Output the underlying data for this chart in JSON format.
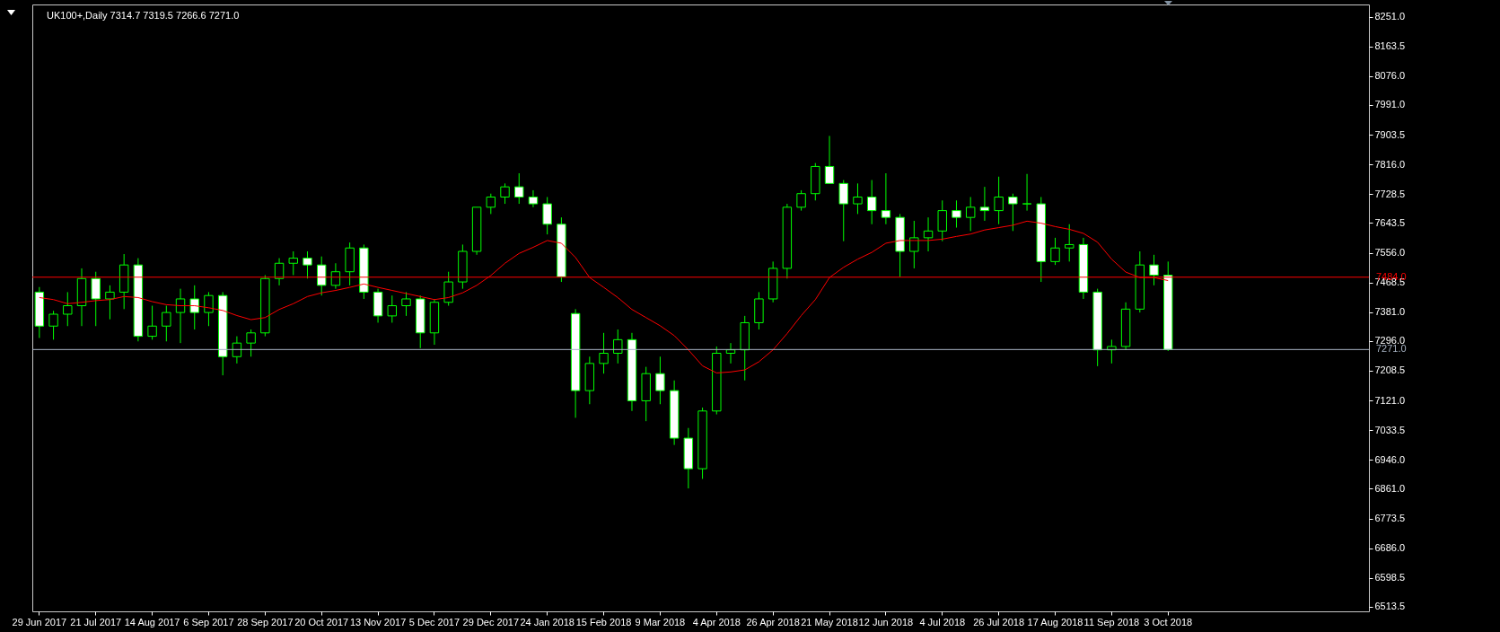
{
  "chart_data": {
    "type": "candlestick",
    "title": "UK100+,Daily 7314.7 7319.5 7266.6 7271.0",
    "categories": [
      "29 Jun 2017",
      null,
      null,
      null,
      "21 Jul 2017",
      null,
      null,
      null,
      "14 Aug 2017",
      null,
      null,
      null,
      "6 Sep 2017",
      null,
      null,
      null,
      "28 Sep 2017",
      null,
      null,
      null,
      "20 Oct 2017",
      null,
      null,
      null,
      "13 Nov 2017",
      null,
      null,
      null,
      "5 Dec 2017",
      null,
      null,
      null,
      "29 Dec 2017",
      null,
      null,
      null,
      "24 Jan 2018",
      null,
      null,
      null,
      "15 Feb 2018",
      null,
      null,
      null,
      "9 Mar 2018",
      null,
      null,
      null,
      "4 Apr 2018",
      null,
      null,
      null,
      "26 Apr 2018",
      null,
      null,
      null,
      "21 May 2018",
      null,
      null,
      null,
      "12 Jun 2018",
      null,
      null,
      null,
      "4 Jul 2018",
      null,
      null,
      null,
      "26 Jul 2018",
      null,
      null,
      null,
      "17 Aug 2018",
      null,
      null,
      null,
      "11 Sep 2018",
      null,
      null,
      null,
      "3 Oct 2018"
    ],
    "series": [
      {
        "color": "#00ff00",
        "ohlc": [
          [
            7440,
            7455,
            7305,
            7340
          ],
          [
            7340,
            7385,
            7300,
            7375
          ],
          [
            7375,
            7440,
            7340,
            7400
          ],
          [
            7400,
            7510,
            7340,
            7480
          ],
          [
            7480,
            7500,
            7340,
            7420
          ],
          [
            7420,
            7460,
            7360,
            7440
          ],
          [
            7440,
            7552,
            7390,
            7520
          ],
          [
            7520,
            7540,
            7295,
            7310
          ],
          [
            7310,
            7400,
            7300,
            7340
          ],
          [
            7340,
            7400,
            7295,
            7380
          ],
          [
            7380,
            7450,
            7290,
            7420
          ],
          [
            7420,
            7460,
            7330,
            7380
          ],
          [
            7380,
            7440,
            7340,
            7430
          ],
          [
            7430,
            7440,
            7195,
            7250
          ],
          [
            7250,
            7310,
            7230,
            7290
          ],
          [
            7290,
            7330,
            7250,
            7320
          ],
          [
            7320,
            7490,
            7310,
            7480
          ],
          [
            7480,
            7540,
            7460,
            7525
          ],
          [
            7525,
            7560,
            7490,
            7540
          ],
          [
            7540,
            7560,
            7480,
            7520
          ],
          [
            7520,
            7545,
            7430,
            7460
          ],
          [
            7460,
            7525,
            7450,
            7500
          ],
          [
            7500,
            7586,
            7460,
            7570
          ],
          [
            7570,
            7580,
            7420,
            7440
          ],
          [
            7440,
            7450,
            7350,
            7370
          ],
          [
            7370,
            7430,
            7350,
            7400
          ],
          [
            7400,
            7440,
            7370,
            7420
          ],
          [
            7420,
            7430,
            7275,
            7320
          ],
          [
            7320,
            7420,
            7285,
            7410
          ],
          [
            7410,
            7500,
            7400,
            7470
          ],
          [
            7470,
            7580,
            7450,
            7560
          ],
          [
            7560,
            7690,
            7550,
            7690
          ],
          [
            7690,
            7730,
            7670,
            7720
          ],
          [
            7720,
            7760,
            7700,
            7750
          ],
          [
            7750,
            7790,
            7700,
            7720
          ],
          [
            7720,
            7740,
            7690,
            7700
          ],
          [
            7700,
            7720,
            7610,
            7640
          ],
          [
            7640,
            7660,
            7470,
            7485
          ],
          [
            7377,
            7390,
            7070,
            7150
          ],
          [
            7150,
            7250,
            7110,
            7230
          ],
          [
            7230,
            7320,
            7200,
            7260
          ],
          [
            7260,
            7330,
            7230,
            7300
          ],
          [
            7300,
            7320,
            7090,
            7120
          ],
          [
            7120,
            7220,
            7060,
            7200
          ],
          [
            7200,
            7250,
            7110,
            7150
          ],
          [
            7150,
            7180,
            6990,
            7010
          ],
          [
            7010,
            7040,
            6862,
            6920
          ],
          [
            6920,
            7100,
            6890,
            7090
          ],
          [
            7090,
            7280,
            7080,
            7260
          ],
          [
            7260,
            7290,
            7230,
            7270
          ],
          [
            7270,
            7370,
            7180,
            7350
          ],
          [
            7350,
            7440,
            7330,
            7420
          ],
          [
            7420,
            7530,
            7410,
            7510
          ],
          [
            7510,
            7700,
            7480,
            7690
          ],
          [
            7690,
            7740,
            7680,
            7730
          ],
          [
            7730,
            7820,
            7710,
            7810
          ],
          [
            7810,
            7900,
            7760,
            7760
          ],
          [
            7760,
            7770,
            7590,
            7700
          ],
          [
            7700,
            7760,
            7670,
            7720
          ],
          [
            7720,
            7770,
            7640,
            7680
          ],
          [
            7680,
            7790,
            7640,
            7660
          ],
          [
            7660,
            7670,
            7485,
            7560
          ],
          [
            7560,
            7650,
            7510,
            7600
          ],
          [
            7600,
            7660,
            7560,
            7620
          ],
          [
            7620,
            7710,
            7590,
            7680
          ],
          [
            7680,
            7710,
            7630,
            7660
          ],
          [
            7660,
            7720,
            7620,
            7690
          ],
          [
            7690,
            7750,
            7650,
            7680
          ],
          [
            7680,
            7780,
            7640,
            7720
          ],
          [
            7720,
            7730,
            7620,
            7700
          ],
          [
            7700,
            7788,
            7680,
            7700
          ],
          [
            7700,
            7720,
            7470,
            7530
          ],
          [
            7530,
            7600,
            7520,
            7570
          ],
          [
            7570,
            7640,
            7530,
            7580
          ],
          [
            7580,
            7600,
            7420,
            7440
          ],
          [
            7440,
            7450,
            7222,
            7270
          ],
          [
            7270,
            7300,
            7230,
            7280
          ],
          [
            7280,
            7410,
            7270,
            7390
          ],
          [
            7390,
            7560,
            7380,
            7520
          ],
          [
            7520,
            7550,
            7460,
            7490
          ],
          [
            7490,
            7530,
            7266.6,
            7271.0
          ]
        ]
      },
      {
        "type": "line",
        "color": "#ff0000",
        "values": [
          7424,
          7418,
          7406,
          7410,
          7415,
          7418,
          7427,
          7424,
          7412,
          7403,
          7400,
          7400,
          7394,
          7386,
          7371,
          7359,
          7365,
          7389,
          7406,
          7427,
          7438,
          7445,
          7454,
          7464,
          7454,
          7445,
          7436,
          7427,
          7418,
          7424,
          7438,
          7460,
          7489,
          7525,
          7554,
          7572,
          7592,
          7584,
          7542,
          7483,
          7454,
          7424,
          7389,
          7365,
          7341,
          7312,
          7270,
          7223,
          7202,
          7205,
          7211,
          7235,
          7270,
          7318,
          7371,
          7418,
          7483,
          7513,
          7537,
          7557,
          7584,
          7592,
          7592,
          7592,
          7596,
          7604,
          7611,
          7623,
          7630,
          7637,
          7649,
          7643,
          7633,
          7625,
          7613,
          7587,
          7537,
          7499,
          7483,
          7483,
          7474
        ]
      }
    ],
    "ylim": [
      6500,
      8287
    ],
    "yticks": [
      {
        "value": 8251,
        "label": "8251.0"
      },
      {
        "value": 8163.5,
        "label": "8163.5"
      },
      {
        "value": 8076,
        "label": "8076.0"
      },
      {
        "value": 7991,
        "label": "7991.0"
      },
      {
        "value": 7903.5,
        "label": "7903.5"
      },
      {
        "value": 7816,
        "label": "7816.0"
      },
      {
        "value": 7728.5,
        "label": "7728.5"
      },
      {
        "value": 7643.5,
        "label": "7643.5"
      },
      {
        "value": 7556,
        "label": "7556.0"
      },
      {
        "value": 7468.5,
        "label": "7468.5"
      },
      {
        "value": 7381,
        "label": "7381.0"
      },
      {
        "value": 7296,
        "label": "7296.0"
      },
      {
        "value": 7208.5,
        "label": "7208.5"
      },
      {
        "value": 7121,
        "label": "7121.0"
      },
      {
        "value": 7033.5,
        "label": "7033.5"
      },
      {
        "value": 6946,
        "label": "6946.0"
      },
      {
        "value": 6861,
        "label": "6861.0"
      },
      {
        "value": 6773.5,
        "label": "6773.5"
      },
      {
        "value": 6686,
        "label": "6686.0"
      },
      {
        "value": 6598.5,
        "label": "6598.5"
      },
      {
        "value": 6513.5,
        "label": "6513.5"
      }
    ],
    "ref_lines": [
      {
        "axis": "y",
        "value": 7484,
        "label": "7484.0",
        "color": "#ff0000"
      },
      {
        "axis": "y",
        "value": 7271,
        "label": "7271.0",
        "color": "#a8b4c4"
      }
    ],
    "grid": false
  }
}
